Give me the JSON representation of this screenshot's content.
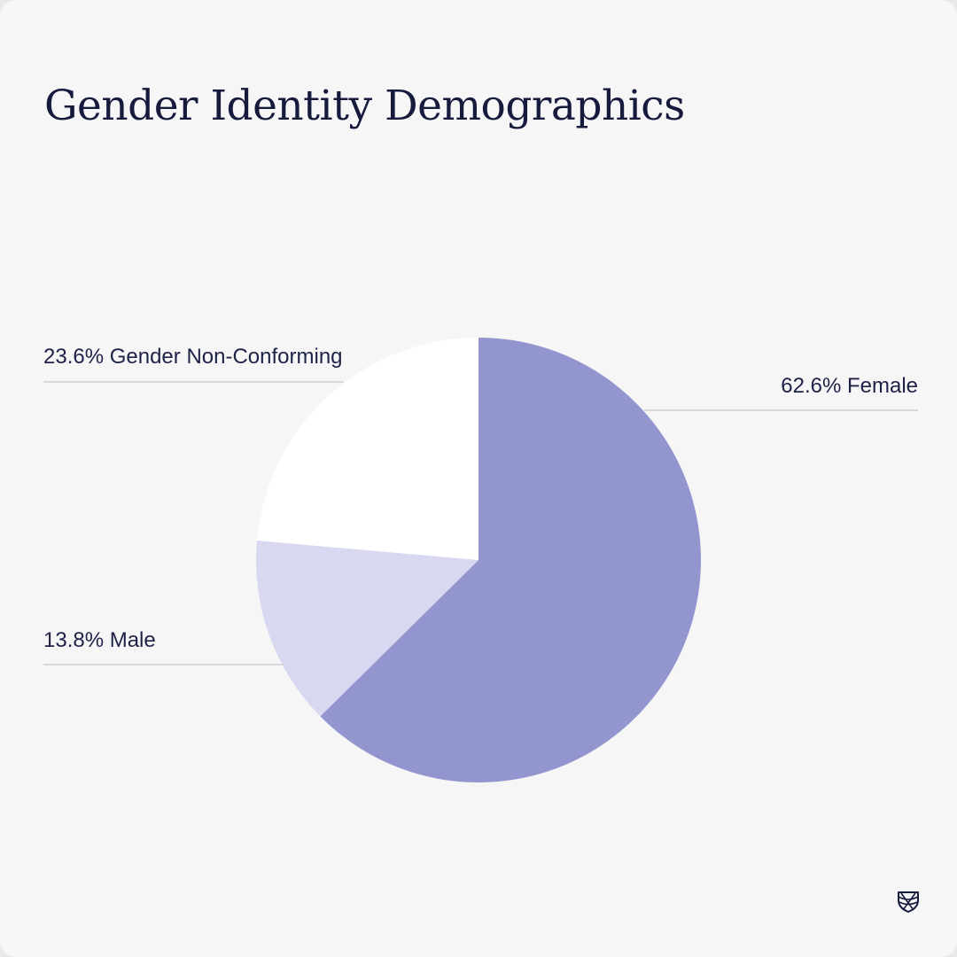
{
  "chart_data": {
    "type": "pie",
    "title": "Gender Identity Demographics",
    "slices": [
      {
        "label": "Female",
        "value": 62.6,
        "display": "62.6% Female",
        "color": "#9395ce"
      },
      {
        "label": "Male",
        "value": 13.8,
        "display": "13.8% Male",
        "color": "#d8d9f1"
      },
      {
        "label": "Gender Non-Conforming",
        "value": 23.6,
        "display": "23.6% Gender Non-Conforming",
        "color": "#ffffff"
      }
    ]
  },
  "logo": {
    "icon": "shield-crest-icon",
    "color": "#161a3c"
  }
}
